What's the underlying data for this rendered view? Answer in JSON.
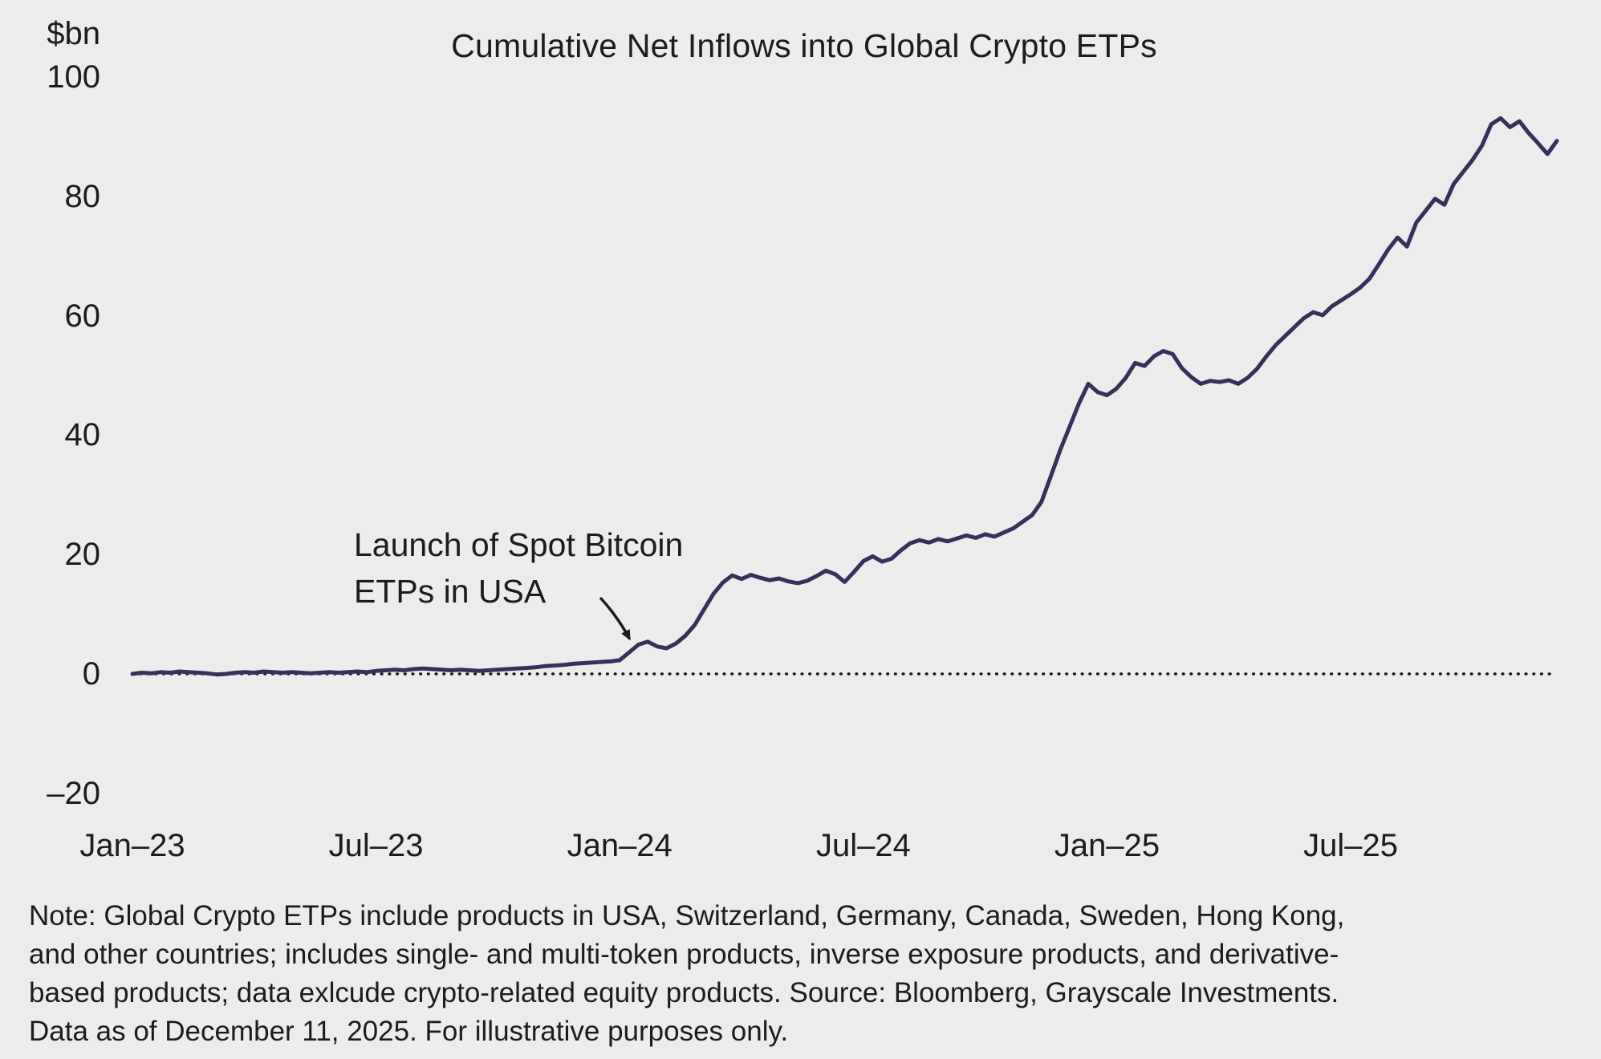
{
  "colors": {
    "background": "#ececec",
    "line": "#34315a",
    "zero_line": "#141414",
    "text": "#1c1c1c"
  },
  "note": {
    "lines": [
      "Note: Global Crypto ETPs include products in USA, Switzerland, Germany, Canada, Sweden, Hong Kong,",
      "and other countries; includes single- and multi-token products, inverse exposure products, and derivative-",
      "based products; data exlcude crypto-related equity products. Source: Bloomberg, Grayscale Investments.",
      "Data as of December 11, 2025. For illustrative purposes only."
    ]
  },
  "chart_data": {
    "type": "line",
    "title": "Cumulative Net Inflows into Global Crypto ETPs",
    "ylabel": "$bn",
    "xlabel": "",
    "ylim": [
      -20,
      100
    ],
    "grid": false,
    "zero_baseline": "dotted",
    "x_start": "2023-01-06",
    "x_end": "2025-12-11",
    "x_step": "weekly",
    "y_ticks": [
      {
        "label": "100",
        "value": 100
      },
      {
        "label": "80",
        "value": 80
      },
      {
        "label": "60",
        "value": 60
      },
      {
        "label": "40",
        "value": 40
      },
      {
        "label": "20",
        "value": 20
      },
      {
        "label": "0",
        "value": 0
      },
      {
        "label": "–20",
        "value": -20
      }
    ],
    "x_ticks": [
      {
        "label": "Jan–23",
        "index": 0
      },
      {
        "label": "Jul–23",
        "index": 26
      },
      {
        "label": "Jan–24",
        "index": 52
      },
      {
        "label": "Jul–24",
        "index": 78
      },
      {
        "label": "Jan–25",
        "index": 104
      },
      {
        "label": "Jul–25",
        "index": 130
      }
    ],
    "annotation": {
      "text": [
        "Launch of Spot Bitcoin",
        "ETPs in USA"
      ],
      "target_index": 54
    },
    "series": [
      {
        "name": "Cumulative net inflows into global crypto ETPs ($bn)",
        "values": [
          0.0,
          0.2,
          0.1,
          0.3,
          0.2,
          0.4,
          0.3,
          0.2,
          0.1,
          -0.1,
          0.0,
          0.2,
          0.3,
          0.2,
          0.4,
          0.3,
          0.2,
          0.3,
          0.2,
          0.1,
          0.2,
          0.3,
          0.2,
          0.3,
          0.4,
          0.3,
          0.5,
          0.6,
          0.7,
          0.6,
          0.8,
          0.9,
          0.8,
          0.7,
          0.6,
          0.7,
          0.6,
          0.5,
          0.6,
          0.7,
          0.8,
          0.9,
          1.0,
          1.1,
          1.3,
          1.4,
          1.5,
          1.7,
          1.8,
          1.9,
          2.0,
          2.1,
          2.3,
          3.6,
          4.9,
          5.4,
          4.6,
          4.3,
          5.1,
          6.4,
          8.2,
          10.8,
          13.4,
          15.3,
          16.5,
          15.9,
          16.6,
          16.1,
          15.7,
          16.0,
          15.5,
          15.2,
          15.6,
          16.4,
          17.3,
          16.7,
          15.4,
          17.1,
          18.9,
          19.7,
          18.8,
          19.3,
          20.7,
          21.9,
          22.4,
          22.0,
          22.6,
          22.2,
          22.7,
          23.2,
          22.8,
          23.4,
          23.0,
          23.7,
          24.4,
          25.5,
          26.6,
          28.8,
          33.1,
          37.5,
          41.4,
          45.3,
          48.6,
          47.2,
          46.7,
          47.8,
          49.6,
          52.1,
          51.6,
          53.2,
          54.1,
          53.6,
          51.2,
          49.7,
          48.6,
          49.1,
          48.9,
          49.2,
          48.6,
          49.6,
          51.1,
          53.2,
          55.1,
          56.6,
          58.1,
          59.6,
          60.6,
          60.1,
          61.6,
          62.6,
          63.6,
          64.7,
          66.2,
          68.6,
          71.1,
          73.1,
          71.6,
          75.6,
          77.6,
          79.6,
          78.6,
          82.1,
          84.1,
          86.1,
          88.5,
          92.1,
          93.1,
          91.6,
          92.6,
          90.6,
          88.9,
          87.1,
          89.3
        ]
      }
    ]
  }
}
